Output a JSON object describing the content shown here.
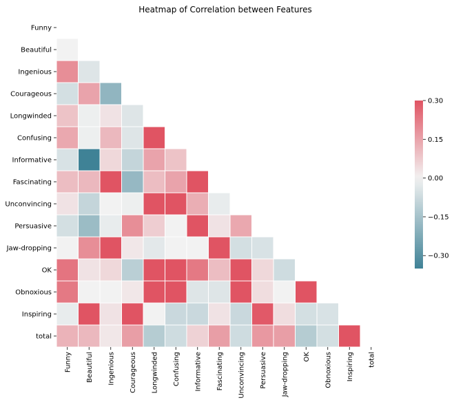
{
  "chart_data": {
    "type": "heatmap",
    "title": "Heatmap of Correlation between Features",
    "mask": "upper-triangle-and-diagonal",
    "labels": [
      "Funny",
      "Beautiful",
      "Ingenious",
      "Courageous",
      "Longwinded",
      "Confusing",
      "Informative",
      "Fascinating",
      "Unconvincing",
      "Persuasive",
      "Jaw-dropping",
      "OK",
      "Obnoxious",
      "Inspiring",
      "total"
    ],
    "lower_triangle_values": [
      [],
      [
        0.0
      ],
      [
        0.19,
        -0.04
      ],
      [
        -0.06,
        0.15,
        -0.19
      ],
      [
        0.09,
        -0.01,
        0.03,
        -0.04
      ],
      [
        0.14,
        -0.01,
        0.11,
        -0.04,
        0.3
      ],
      [
        -0.05,
        -0.35,
        0.05,
        -0.09,
        0.15,
        0.09
      ],
      [
        0.1,
        0.11,
        0.3,
        -0.18,
        0.1,
        0.15,
        0.3
      ],
      [
        0.03,
        -0.09,
        0.0,
        -0.01,
        0.3,
        0.3,
        0.13,
        -0.02
      ],
      [
        -0.06,
        -0.17,
        -0.02,
        0.19,
        0.07,
        0.0,
        0.3,
        0.03,
        0.14
      ],
      [
        0.0,
        0.19,
        0.3,
        0.02,
        -0.03,
        0.0,
        0.0,
        0.3,
        -0.06,
        -0.05
      ],
      [
        0.24,
        0.03,
        0.05,
        -0.11,
        0.3,
        0.3,
        0.23,
        0.1,
        0.3,
        0.05,
        -0.07
      ],
      [
        0.23,
        0.0,
        0.0,
        0.02,
        0.3,
        0.3,
        -0.04,
        -0.04,
        0.3,
        0.04,
        0.0,
        0.3
      ],
      [
        -0.02,
        0.3,
        0.03,
        0.3,
        0.0,
        -0.08,
        -0.08,
        0.03,
        -0.08,
        0.29,
        0.04,
        -0.06,
        -0.05
      ],
      [
        0.12,
        0.11,
        0.02,
        0.16,
        -0.12,
        -0.07,
        0.06,
        0.16,
        -0.07,
        0.17,
        0.16,
        -0.12,
        -0.06,
        0.3
      ]
    ],
    "colorbar": {
      "vmin": -0.35,
      "vmax": 0.3,
      "ticks": [
        "0.30",
        "0.15",
        "0.00",
        "−0.15",
        "−0.30"
      ],
      "tick_values": [
        0.3,
        0.15,
        0.0,
        -0.15,
        -0.3
      ],
      "cmap": "diverging blue-white-red",
      "colors": {
        "negative": "#3f8296",
        "center": "#f2f2f2",
        "positive": "#e05463"
      }
    }
  }
}
